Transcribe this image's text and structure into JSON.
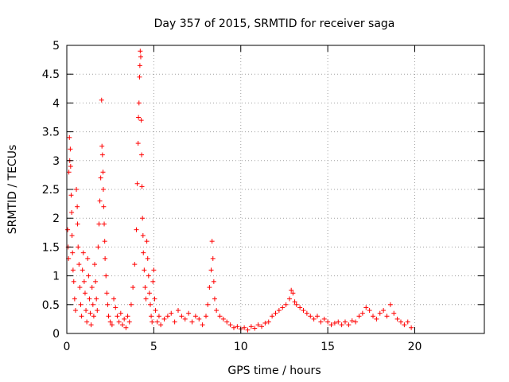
{
  "chart_data": {
    "type": "scatter",
    "title": "Day 357 of 2015, SRMTID for receiver saga",
    "xlabel": "GPS time / hours",
    "ylabel": "SRMTID / TECUs",
    "xlim": [
      0,
      24
    ],
    "ylim": [
      0,
      5
    ],
    "xticks": [
      "0",
      "5",
      "10",
      "15",
      "20"
    ],
    "xtick_values": [
      0,
      5,
      10,
      15,
      20
    ],
    "yticks": [
      "0",
      "0.5",
      "1",
      "1.5",
      "2",
      "2.5",
      "3",
      "3.5",
      "4",
      "4.5",
      "5"
    ],
    "ytick_values": [
      0,
      0.5,
      1,
      1.5,
      2,
      2.5,
      3,
      3.5,
      4,
      4.5,
      5
    ],
    "grid": true,
    "marker": "+",
    "color": "#ff0000",
    "series": [
      {
        "name": "SRMTID",
        "points": [
          [
            0.05,
            1.8
          ],
          [
            0.08,
            1.5
          ],
          [
            0.1,
            1.3
          ],
          [
            0.12,
            2.8
          ],
          [
            0.15,
            3.4
          ],
          [
            0.17,
            3.0
          ],
          [
            0.2,
            3.2
          ],
          [
            0.22,
            2.9
          ],
          [
            0.25,
            2.4
          ],
          [
            0.28,
            2.1
          ],
          [
            0.3,
            1.7
          ],
          [
            0.33,
            1.4
          ],
          [
            0.36,
            1.1
          ],
          [
            0.4,
            0.9
          ],
          [
            0.45,
            0.6
          ],
          [
            0.5,
            0.4
          ],
          [
            0.55,
            2.5
          ],
          [
            0.6,
            2.2
          ],
          [
            0.62,
            1.9
          ],
          [
            0.65,
            1.5
          ],
          [
            0.7,
            1.2
          ],
          [
            0.75,
            0.8
          ],
          [
            0.8,
            0.5
          ],
          [
            0.85,
            0.3
          ],
          [
            0.9,
            1.1
          ],
          [
            0.95,
            1.4
          ],
          [
            1.0,
            0.9
          ],
          [
            1.05,
            0.7
          ],
          [
            1.1,
            0.4
          ],
          [
            1.15,
            0.2
          ],
          [
            1.2,
            1.3
          ],
          [
            1.25,
            1.0
          ],
          [
            1.3,
            0.6
          ],
          [
            1.35,
            0.35
          ],
          [
            1.4,
            0.15
          ],
          [
            1.45,
            0.8
          ],
          [
            1.5,
            0.5
          ],
          [
            1.55,
            0.3
          ],
          [
            1.6,
            1.2
          ],
          [
            1.65,
            0.9
          ],
          [
            1.7,
            0.6
          ],
          [
            1.75,
            0.4
          ],
          [
            1.8,
            1.5
          ],
          [
            1.85,
            1.9
          ],
          [
            1.9,
            2.3
          ],
          [
            1.95,
            2.7
          ],
          [
            2.0,
            4.05
          ],
          [
            2.02,
            3.25
          ],
          [
            2.05,
            3.1
          ],
          [
            2.08,
            2.8
          ],
          [
            2.1,
            2.5
          ],
          [
            2.12,
            2.2
          ],
          [
            2.15,
            1.9
          ],
          [
            2.18,
            1.6
          ],
          [
            2.2,
            1.3
          ],
          [
            2.25,
            1.0
          ],
          [
            2.3,
            0.7
          ],
          [
            2.35,
            0.5
          ],
          [
            2.4,
            0.3
          ],
          [
            2.5,
            0.2
          ],
          [
            2.6,
            0.15
          ],
          [
            2.7,
            0.6
          ],
          [
            2.8,
            0.45
          ],
          [
            2.9,
            0.3
          ],
          [
            3.0,
            0.2
          ],
          [
            3.1,
            0.35
          ],
          [
            3.2,
            0.15
          ],
          [
            3.3,
            0.25
          ],
          [
            3.4,
            0.1
          ],
          [
            3.5,
            0.3
          ],
          [
            3.6,
            0.2
          ],
          [
            3.7,
            0.5
          ],
          [
            3.8,
            0.8
          ],
          [
            3.9,
            1.2
          ],
          [
            4.0,
            1.8
          ],
          [
            4.05,
            2.6
          ],
          [
            4.1,
            3.3
          ],
          [
            4.12,
            3.75
          ],
          [
            4.15,
            4.0
          ],
          [
            4.18,
            4.45
          ],
          [
            4.2,
            4.65
          ],
          [
            4.22,
            4.9
          ],
          [
            4.25,
            4.8
          ],
          [
            4.28,
            3.7
          ],
          [
            4.3,
            3.1
          ],
          [
            4.32,
            2.55
          ],
          [
            4.35,
            2.0
          ],
          [
            4.38,
            1.7
          ],
          [
            4.4,
            1.4
          ],
          [
            4.45,
            1.1
          ],
          [
            4.5,
            0.8
          ],
          [
            4.55,
            0.6
          ],
          [
            4.6,
            1.6
          ],
          [
            4.65,
            1.3
          ],
          [
            4.7,
            1.0
          ],
          [
            4.75,
            0.7
          ],
          [
            4.8,
            0.5
          ],
          [
            4.85,
            0.3
          ],
          [
            4.9,
            0.2
          ],
          [
            4.95,
            0.9
          ],
          [
            5.0,
            1.1
          ],
          [
            5.05,
            0.6
          ],
          [
            5.1,
            0.4
          ],
          [
            5.2,
            0.2
          ],
          [
            5.3,
            0.3
          ],
          [
            5.4,
            0.15
          ],
          [
            5.6,
            0.25
          ],
          [
            5.8,
            0.3
          ],
          [
            6.0,
            0.35
          ],
          [
            6.2,
            0.2
          ],
          [
            6.4,
            0.4
          ],
          [
            6.6,
            0.3
          ],
          [
            6.8,
            0.25
          ],
          [
            7.0,
            0.35
          ],
          [
            7.2,
            0.2
          ],
          [
            7.4,
            0.3
          ],
          [
            7.6,
            0.25
          ],
          [
            7.8,
            0.15
          ],
          [
            8.0,
            0.3
          ],
          [
            8.1,
            0.5
          ],
          [
            8.2,
            0.8
          ],
          [
            8.3,
            1.1
          ],
          [
            8.35,
            1.6
          ],
          [
            8.4,
            1.3
          ],
          [
            8.45,
            0.9
          ],
          [
            8.5,
            0.6
          ],
          [
            8.6,
            0.4
          ],
          [
            8.8,
            0.3
          ],
          [
            9.0,
            0.25
          ],
          [
            9.2,
            0.2
          ],
          [
            9.4,
            0.15
          ],
          [
            9.6,
            0.1
          ],
          [
            9.8,
            0.12
          ],
          [
            10.0,
            0.08
          ],
          [
            10.2,
            0.1
          ],
          [
            10.4,
            0.06
          ],
          [
            10.6,
            0.12
          ],
          [
            10.8,
            0.09
          ],
          [
            11.0,
            0.15
          ],
          [
            11.2,
            0.12
          ],
          [
            11.4,
            0.18
          ],
          [
            11.6,
            0.2
          ],
          [
            11.8,
            0.3
          ],
          [
            12.0,
            0.35
          ],
          [
            12.2,
            0.4
          ],
          [
            12.4,
            0.45
          ],
          [
            12.6,
            0.5
          ],
          [
            12.8,
            0.6
          ],
          [
            12.9,
            0.75
          ],
          [
            13.0,
            0.7
          ],
          [
            13.1,
            0.55
          ],
          [
            13.2,
            0.5
          ],
          [
            13.4,
            0.45
          ],
          [
            13.6,
            0.4
          ],
          [
            13.8,
            0.35
          ],
          [
            14.0,
            0.3
          ],
          [
            14.2,
            0.25
          ],
          [
            14.4,
            0.3
          ],
          [
            14.6,
            0.2
          ],
          [
            14.8,
            0.25
          ],
          [
            15.0,
            0.2
          ],
          [
            15.2,
            0.15
          ],
          [
            15.4,
            0.18
          ],
          [
            15.6,
            0.2
          ],
          [
            15.8,
            0.15
          ],
          [
            16.0,
            0.2
          ],
          [
            16.2,
            0.15
          ],
          [
            16.4,
            0.22
          ],
          [
            16.6,
            0.2
          ],
          [
            16.8,
            0.3
          ],
          [
            17.0,
            0.35
          ],
          [
            17.2,
            0.45
          ],
          [
            17.4,
            0.4
          ],
          [
            17.6,
            0.3
          ],
          [
            17.8,
            0.25
          ],
          [
            18.0,
            0.35
          ],
          [
            18.2,
            0.4
          ],
          [
            18.4,
            0.3
          ],
          [
            18.6,
            0.5
          ],
          [
            18.8,
            0.35
          ],
          [
            19.0,
            0.25
          ],
          [
            19.2,
            0.2
          ],
          [
            19.4,
            0.15
          ],
          [
            19.6,
            0.2
          ],
          [
            19.8,
            0.1
          ]
        ]
      }
    ]
  }
}
